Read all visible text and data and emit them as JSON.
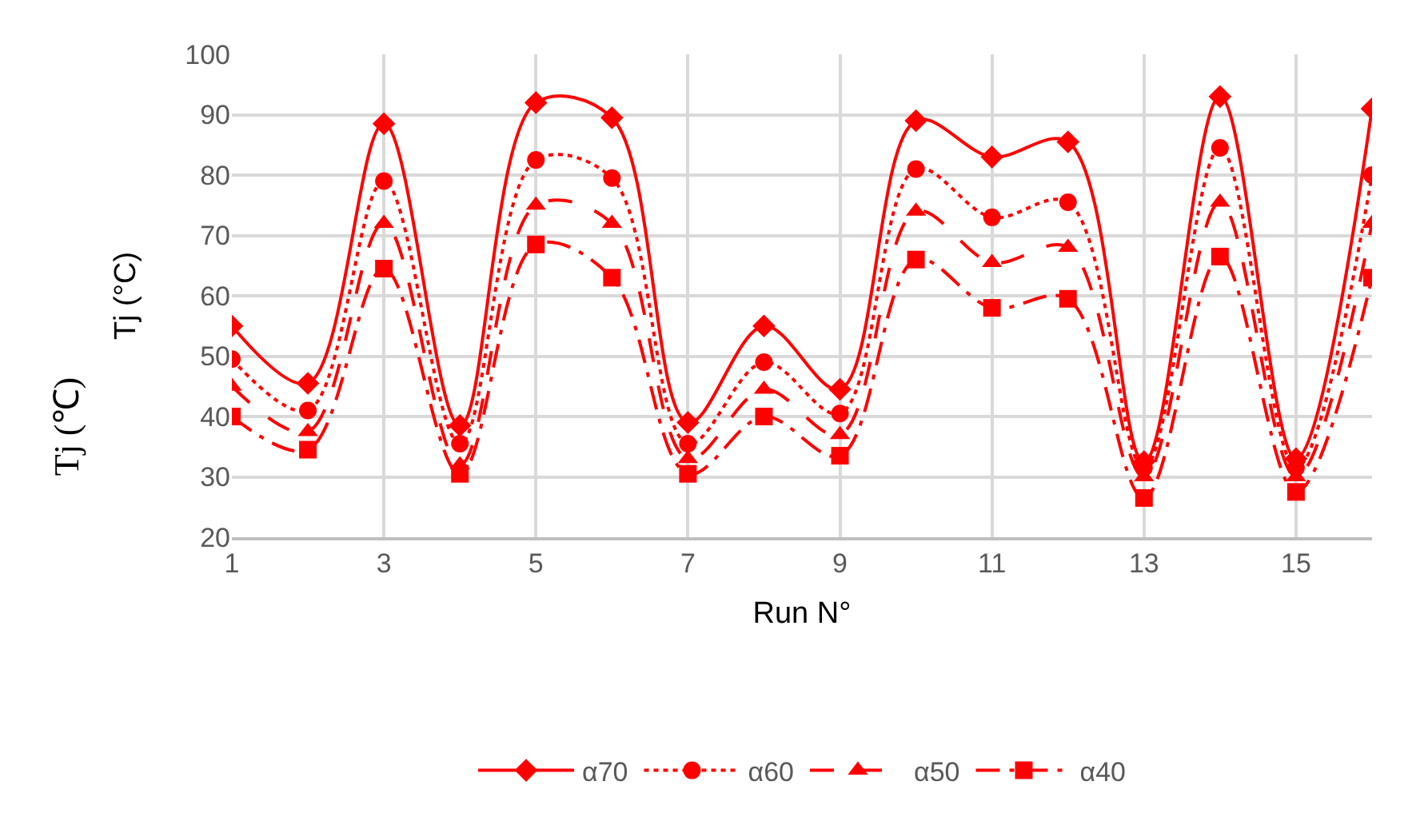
{
  "chart_data": {
    "type": "line",
    "xlabel": "Run N°",
    "ylabel": "Tj (°C)",
    "annotations": [
      "Tj (℃)"
    ],
    "x": [
      1,
      2,
      3,
      4,
      5,
      6,
      7,
      8,
      9,
      10,
      11,
      12,
      13,
      14,
      15,
      16
    ],
    "series": [
      {
        "name": "α70",
        "color": "#ff0000",
        "marker": "diamond",
        "line_style": "solid",
        "values": [
          55,
          45.5,
          88.5,
          38.5,
          92,
          89.5,
          39,
          55,
          44.5,
          89,
          83,
          85.5,
          32.5,
          93,
          33,
          91
        ]
      },
      {
        "name": "α60",
        "color": "#ff0000",
        "marker": "circle",
        "line_style": "dotted",
        "values": [
          49.5,
          41,
          79,
          35.5,
          82.5,
          79.5,
          35.5,
          49,
          40.5,
          81,
          73,
          75.5,
          31.5,
          84.5,
          31.5,
          80
        ]
      },
      {
        "name": "α50",
        "color": "#ff0000",
        "marker": "triangle",
        "line_style": "dashed",
        "values": [
          45,
          37.5,
          72,
          32,
          75,
          72,
          33,
          44.5,
          37,
          74,
          65.5,
          68,
          30,
          75.5,
          30,
          72
        ]
      },
      {
        "name": "α40",
        "color": "#ff0000",
        "marker": "square",
        "line_style": "dashdot",
        "values": [
          40,
          34.5,
          64.5,
          30.5,
          68.5,
          63,
          30.5,
          40,
          33.5,
          66,
          58,
          59.5,
          26.5,
          66.5,
          27.5,
          63
        ]
      }
    ],
    "xlim": [
      1,
      16
    ],
    "xticks": [
      1,
      3,
      5,
      7,
      9,
      11,
      13,
      15
    ],
    "ylim": [
      20,
      100
    ],
    "yticks": [
      20,
      30,
      40,
      50,
      60,
      70,
      80,
      90,
      100
    ],
    "grid": true,
    "legend": "bottom"
  }
}
